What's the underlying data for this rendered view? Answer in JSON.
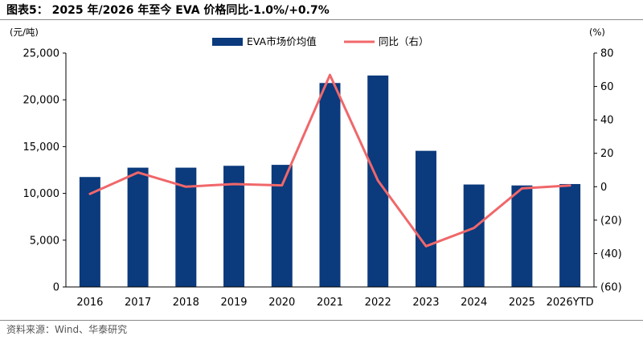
{
  "title": "图表5： 2025 年/2026 年至今 EVA 价格同比-1.0%/+0.7%",
  "source": "资料来源：Wind、华泰研究",
  "chart_data": {
    "type": "bar+line",
    "categories": [
      "2016",
      "2017",
      "2018",
      "2019",
      "2020",
      "2021",
      "2022",
      "2023",
      "2024",
      "2025",
      "2026YTD"
    ],
    "series": [
      {
        "name": "EVA市场价均值",
        "type": "bar",
        "axis": "left",
        "color": "#0b3a7d",
        "values": [
          11750,
          12750,
          12750,
          12950,
          13050,
          21800,
          22600,
          14550,
          10950,
          10850,
          11000
        ]
      },
      {
        "name": "同比（右）",
        "type": "line",
        "axis": "right",
        "color": "#f0676a",
        "values": [
          -4.3,
          8.5,
          0,
          1.6,
          0.8,
          66.9,
          3.7,
          -35.6,
          -24.7,
          -1.0,
          0.7
        ]
      }
    ],
    "left_axis": {
      "unit": "(元/吨)",
      "ylim": [
        0,
        25000
      ],
      "ticks": [
        0,
        5000,
        10000,
        15000,
        20000,
        25000
      ],
      "tick_labels": [
        "0",
        "5,000",
        "10,000",
        "15,000",
        "20,000",
        "25,000"
      ]
    },
    "right_axis": {
      "unit": "(%)",
      "ylim": [
        -60,
        80
      ],
      "ticks": [
        -60,
        -40,
        -20,
        0,
        20,
        40,
        60,
        80
      ],
      "tick_labels": [
        "(60)",
        "(40)",
        "(20)",
        "0",
        "20",
        "40",
        "60",
        "80"
      ]
    },
    "legend": {
      "placement": "top-center",
      "items": [
        "EVA市场价均值",
        "同比（右）"
      ]
    },
    "grid": false
  }
}
